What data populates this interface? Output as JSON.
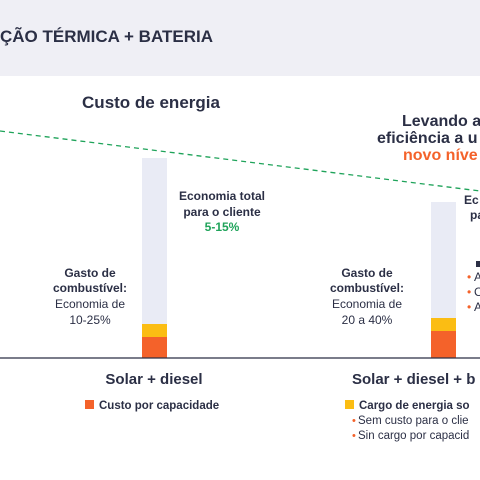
{
  "header": {
    "title": "ÇÃO TÉRMICA + BATERIA"
  },
  "chart_data": {
    "type": "bar",
    "title": "Custo de energia",
    "categories": [
      "Solar + diesel",
      "Solar + diesel + b"
    ],
    "series": [
      {
        "name": "Custo por capacidade",
        "values": [
          0.105,
          0.135
        ]
      },
      {
        "name": "Cargo de energia so",
        "values": [
          0.065,
          0.065
        ]
      },
      {
        "name": "Gasto de combustível",
        "values": [
          0.83,
          0.58
        ]
      }
    ],
    "ylim": [
      0,
      1.05
    ],
    "grid": false,
    "legend_position": "bottom",
    "trend_line": {
      "style": "dashed",
      "color": "#1fa35a"
    }
  },
  "annotations": {
    "cat1_fuel_bold": [
      "Gasto de",
      "combustível:"
    ],
    "cat1_fuel_regular": [
      "Economia de",
      "10-25%"
    ],
    "cat1_saving_bold": [
      "Economia total",
      "para o cliente"
    ],
    "cat1_saving_value": "5-15%",
    "cat2_fuel_bold": [
      "Gasto de",
      "combustível:"
    ],
    "cat2_fuel_regular": [
      "Economia de",
      "20 a 40%"
    ],
    "cat2_saving_bold": [
      "Ec",
      "pa"
    ],
    "cat2_bullets": [
      "A",
      "C",
      "A"
    ],
    "headline_lines": [
      "Levando a",
      "eficiência a u"
    ],
    "headline_accent": "novo níve"
  },
  "legend": {
    "cat1_item": "Custo por capacidade",
    "cat2_item": "Cargo de energia so",
    "cat2_bullets": [
      "Sem custo para o clie",
      "Sin cargo por capacid"
    ]
  },
  "colors": {
    "capacity": "#f4622a",
    "energy": "#fbbd13",
    "fuel": "#e9ebf5",
    "axis": "#2b2f45",
    "text": "#2b2f45",
    "green": "#1fa35a",
    "orange": "#f4622a",
    "header_bg": "#efeff5"
  }
}
